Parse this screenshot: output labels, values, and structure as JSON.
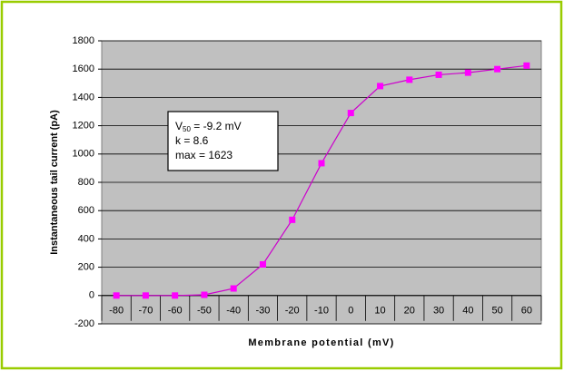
{
  "chart_data": {
    "type": "line",
    "y_label": "Instantaneous tail current (pA)",
    "x_label": "Membrane potential (mV)",
    "categories": [
      -80,
      -70,
      -60,
      -50,
      -40,
      -30,
      -20,
      -10,
      0,
      10,
      20,
      30,
      40,
      50,
      60
    ],
    "series": [
      {
        "color": "#ff00ff",
        "values": [
          0,
          0,
          0,
          5,
          50,
          220,
          535,
          935,
          1290,
          1480,
          1525,
          1560,
          1575,
          1600,
          1625
        ]
      }
    ],
    "ylim": [
      -200,
      1800
    ],
    "yticks": [
      -200,
      0,
      200,
      400,
      600,
      800,
      1000,
      1200,
      1400,
      1600,
      1800
    ],
    "grid": true,
    "annotation": {
      "symbol": "V",
      "subscript": "50",
      "rest": " = -9.2 mV",
      "lines": [
        "k = 8.6",
        "max = 1623"
      ]
    }
  }
}
